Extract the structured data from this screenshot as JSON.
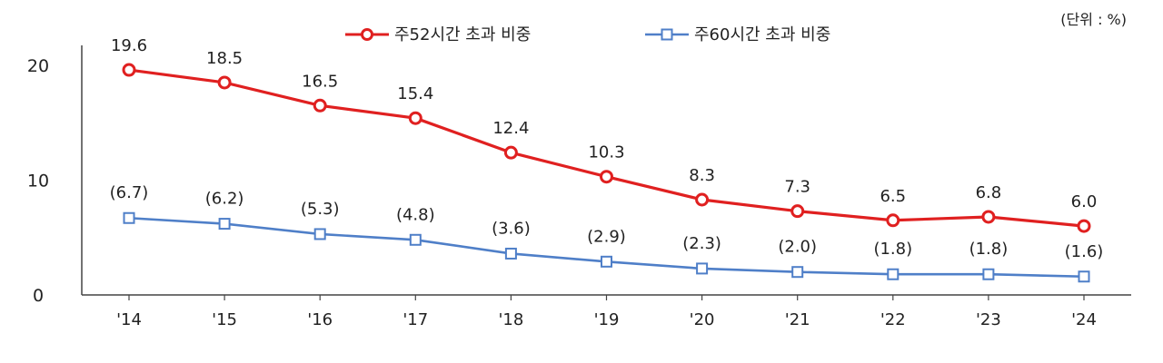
{
  "chart_data": {
    "type": "line",
    "title": "",
    "xlabel": "",
    "ylabel": "",
    "unit": "(단위 : %)",
    "categories": [
      "'14",
      "'15",
      "'16",
      "'17",
      "'18",
      "'19",
      "'20",
      "'21",
      "'22",
      "'23",
      "'24"
    ],
    "ylim": [
      0,
      20
    ],
    "yticks": [
      0,
      10,
      20
    ],
    "grid": false,
    "legend_position": "top-center",
    "series": [
      {
        "name": "주52시간  초과 비중",
        "color": "#e02020",
        "marker": "circle",
        "values": [
          19.6,
          18.5,
          16.5,
          15.4,
          12.4,
          10.3,
          8.3,
          7.3,
          6.5,
          6.8,
          6.0
        ],
        "labels": [
          "19.6",
          "18.5",
          "16.5",
          "15.4",
          "12.4",
          "10.3",
          "8.3",
          "7.3",
          "6.5",
          "6.8",
          "6.0"
        ]
      },
      {
        "name": "주60시간  초과 비중",
        "color": "#4f7fc8",
        "marker": "square",
        "values": [
          6.7,
          6.2,
          5.3,
          4.8,
          3.6,
          2.9,
          2.3,
          2.0,
          1.8,
          1.8,
          1.6
        ],
        "labels": [
          "(6.7)",
          "(6.2)",
          "(5.3)",
          "(4.8)",
          "(3.6)",
          "(2.9)",
          "(2.3)",
          "(2.0)",
          "(1.8)",
          "(1.8)",
          "(1.6)"
        ]
      }
    ]
  }
}
